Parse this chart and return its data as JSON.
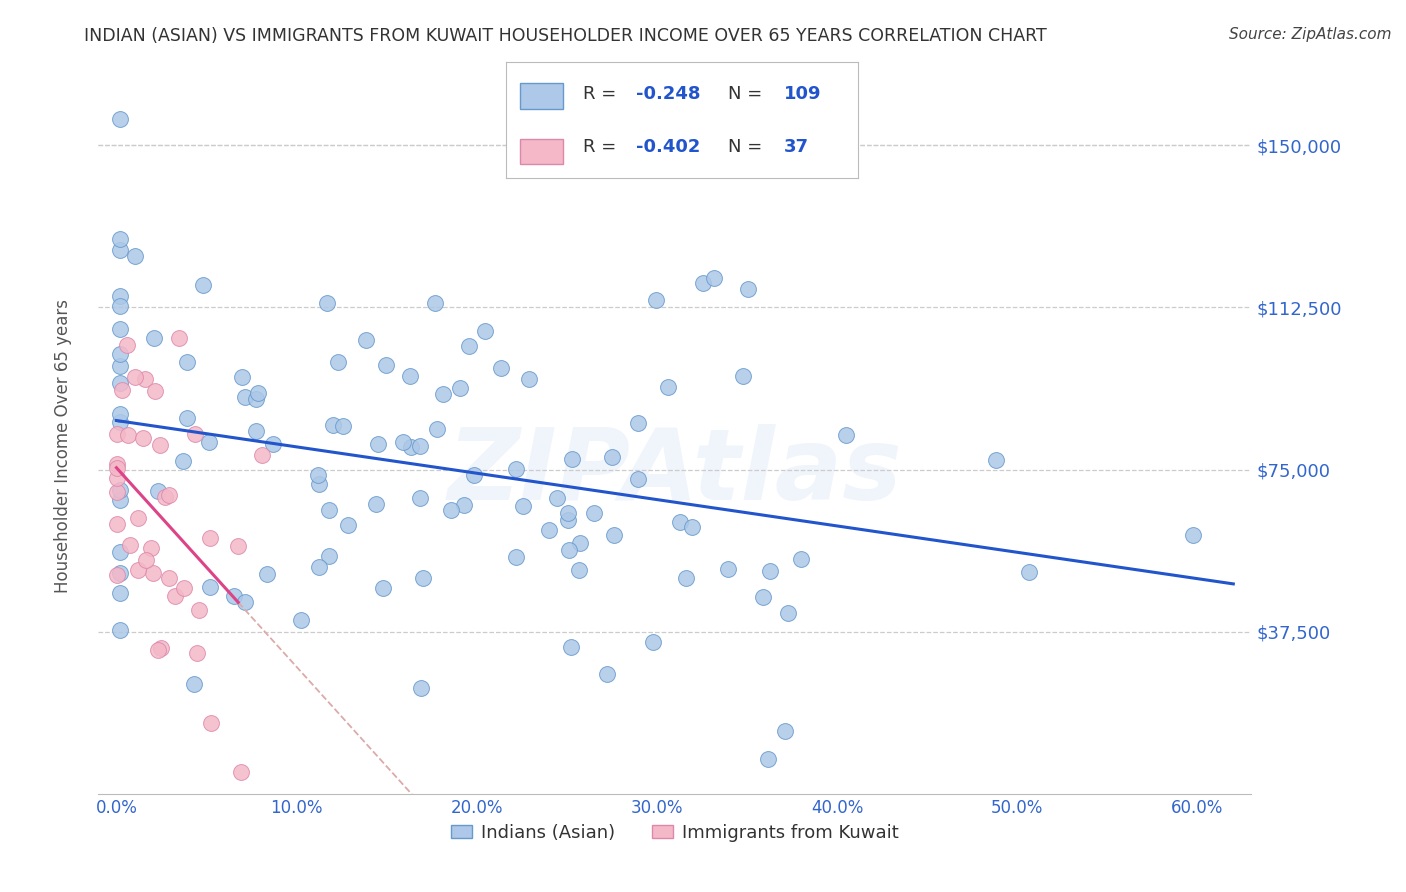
{
  "title": "INDIAN (ASIAN) VS IMMIGRANTS FROM KUWAIT HOUSEHOLDER INCOME OVER 65 YEARS CORRELATION CHART",
  "source": "Source: ZipAtlas.com",
  "ylabel": "Householder Income Over 65 years",
  "xlabel_ticks": [
    "0.0%",
    "10.0%",
    "20.0%",
    "30.0%",
    "40.0%",
    "50.0%",
    "60.0%"
  ],
  "xlabel_vals": [
    0,
    10,
    20,
    30,
    40,
    50,
    60
  ],
  "yticks_labels": [
    "$37,500",
    "$75,000",
    "$112,500",
    "$150,000"
  ],
  "yticks_vals": [
    37500,
    75000,
    112500,
    150000
  ],
  "ylim_bottom": 0,
  "ylim_top": 165000,
  "xlim_left": -1,
  "xlim_right": 63,
  "series1_name": "Indians (Asian)",
  "series2_name": "Immigrants from Kuwait",
  "series1_color": "#adc8e8",
  "series2_color": "#f4b8c8",
  "series1_edge": "#6699cc",
  "series2_edge": "#dd88aa",
  "trend1_color": "#2255cc",
  "trend2_color": "#dd4488",
  "trend_dashed_color": "#ddaaaa",
  "title_color": "#333333",
  "axis_label_color": "#3366cc",
  "watermark": "ZIPAtlas",
  "watermark_color": "#3366cc",
  "R1": -0.248,
  "N1": 109,
  "R2": -0.402,
  "N2": 37,
  "seed": 12,
  "background_color": "#ffffff",
  "series1_x_mean": 18,
  "series1_x_std": 14,
  "series1_y_mean": 80000,
  "series1_y_std": 25000,
  "series2_x_mean": 2.5,
  "series2_x_std": 2.5,
  "series2_y_mean": 68000,
  "series2_y_std": 22000,
  "legend_R1": "-0.248",
  "legend_N1": "109",
  "legend_R2": "-0.402",
  "legend_N2": "37"
}
